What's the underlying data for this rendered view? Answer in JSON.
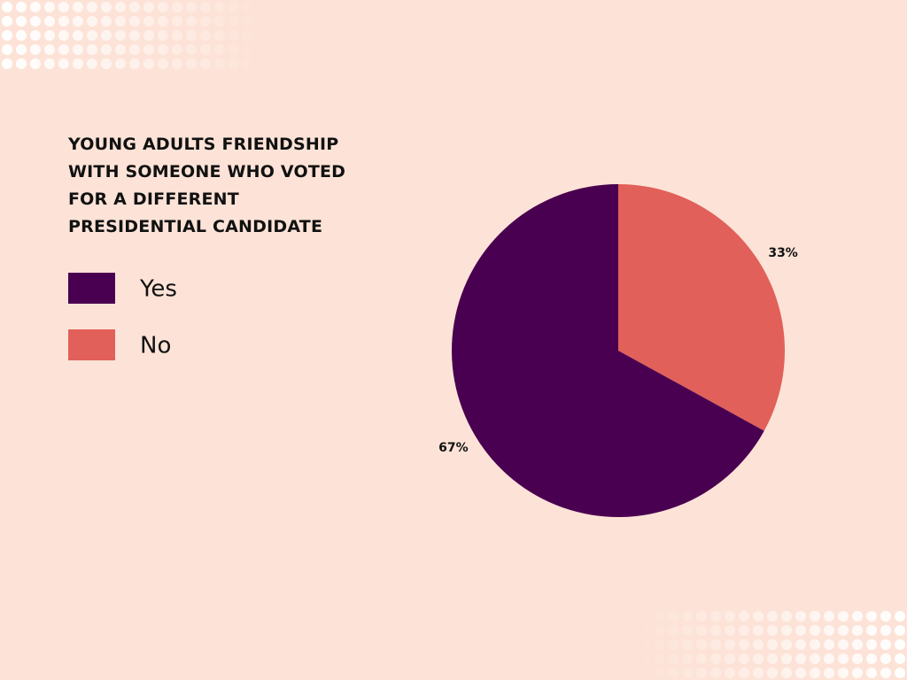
{
  "chart_data": {
    "type": "pie",
    "title": "YOUNG ADULTS FRIENDSHIP WITH SOMEONE WHO VOTED FOR A DIFFERENT PRESIDENTIAL CANDIDATE",
    "categories": [
      "Yes",
      "No"
    ],
    "values": [
      67,
      33
    ],
    "value_labels": [
      "67%",
      "33%"
    ],
    "colors": [
      "#4a0050",
      "#e2605a"
    ]
  }
}
